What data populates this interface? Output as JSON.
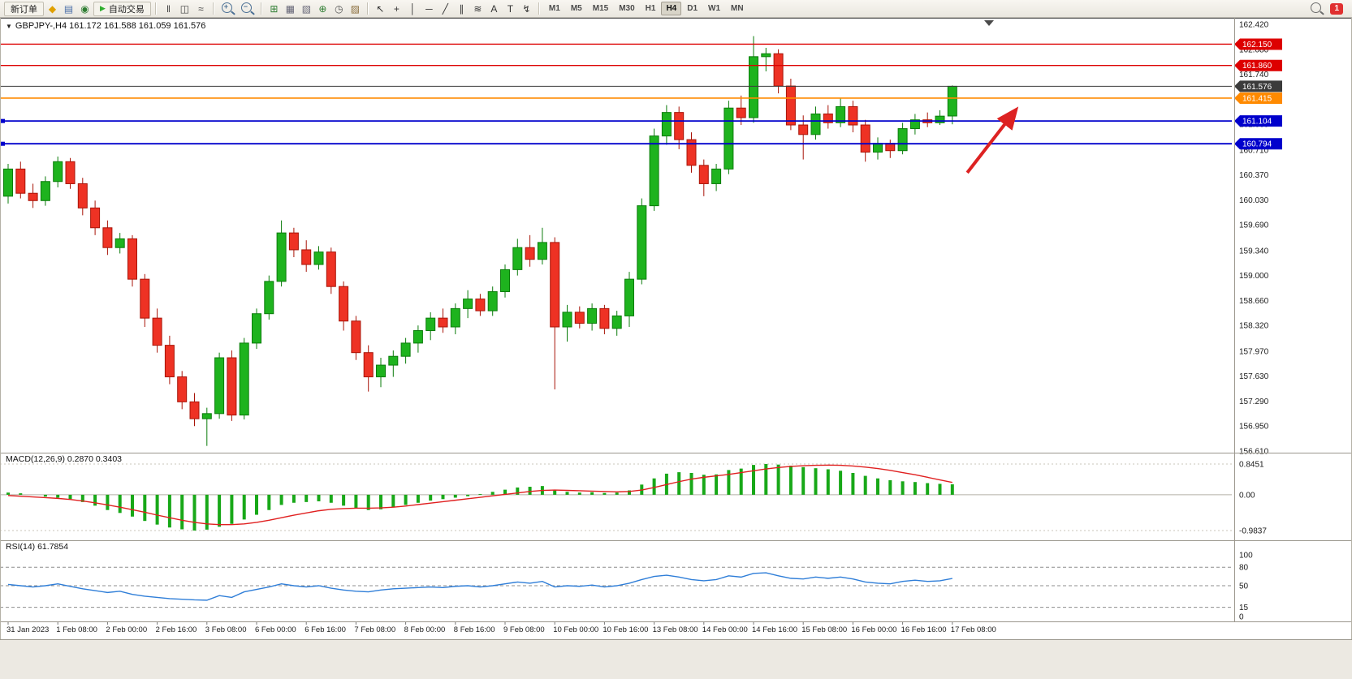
{
  "toolbar": {
    "new_order_label": "新订单",
    "autotrading_label": "自动交易",
    "timeframes": [
      "M1",
      "M5",
      "M15",
      "M30",
      "H1",
      "H4",
      "D1",
      "W1",
      "MN"
    ],
    "active_timeframe": "H4",
    "notification_count": "1",
    "icons": {
      "one_click": {
        "glyph": "▼",
        "color": "#222222"
      },
      "metaeditor": {
        "glyph": "◆",
        "color": "#e0a000"
      },
      "print": {
        "glyph": "▤",
        "color": "#4a6ea8"
      },
      "community": {
        "glyph": "◉",
        "color": "#2e7d32"
      },
      "autotrading_play": {
        "glyph": "▶",
        "color": "#2eae2e"
      },
      "bar_chart": {
        "glyph": "‖",
        "color": "#444444"
      },
      "candlestick": {
        "glyph": "◫",
        "color": "#444444"
      },
      "line_chart": {
        "glyph": "≈",
        "color": "#444444"
      },
      "tile_windows": {
        "glyph": "⊞",
        "color": "#2e7d32"
      },
      "window_list": {
        "glyph": "▦",
        "color": "#666677"
      },
      "cascade": {
        "glyph": "▧",
        "color": "#666677"
      },
      "indicators": {
        "glyph": "⊕",
        "color": "#2e7d32"
      },
      "periods": {
        "glyph": "◷",
        "color": "#555555"
      },
      "templates": {
        "glyph": "▨",
        "color": "#8a6d3b"
      },
      "cursor": {
        "glyph": "↖",
        "color": "#333333"
      },
      "crosshair": {
        "glyph": "+",
        "color": "#333333"
      },
      "vline": {
        "glyph": "│",
        "color": "#333333"
      },
      "hline": {
        "glyph": "─",
        "color": "#333333"
      },
      "trendline": {
        "glyph": "╱",
        "color": "#333333"
      },
      "channel": {
        "glyph": "∥",
        "color": "#333333"
      },
      "fibonacci": {
        "glyph": "≋",
        "color": "#333333"
      },
      "text": {
        "glyph": "A",
        "color": "#333333"
      },
      "label": {
        "glyph": "T",
        "color": "#333333"
      },
      "arrows": {
        "glyph": "↯",
        "color": "#333333"
      }
    }
  },
  "chart": {
    "title": "GBPJPY-,H4 161.172 161.588 161.059 161.576",
    "symbol": "GBPJPY-",
    "period": "H4",
    "ohlc": {
      "open": "161.172",
      "high": "161.588",
      "low": "161.059",
      "close": "161.576"
    }
  },
  "chart_data": {
    "type": "candlestick",
    "symbol": "GBPJPY-",
    "period": "H4",
    "y_range": [
      156.61,
      162.42
    ],
    "y_ticks": [
      "162.420",
      "162.080",
      "161.740",
      "161.400",
      "161.060",
      "160.710",
      "160.370",
      "160.030",
      "159.690",
      "159.340",
      "159.000",
      "158.660",
      "158.320",
      "157.970",
      "157.630",
      "157.290",
      "156.950",
      "156.610"
    ],
    "x_labels": [
      "31 Jan 2023",
      "1 Feb 08:00",
      "2 Feb 00:00",
      "2 Feb 16:00",
      "3 Feb 08:00",
      "6 Feb 00:00",
      "6 Feb 16:00",
      "7 Feb 08:00",
      "8 Feb 00:00",
      "8 Feb 16:00",
      "9 Feb 08:00",
      "10 Feb 00:00",
      "10 Feb 16:00",
      "13 Feb 08:00",
      "14 Feb 00:00",
      "14 Feb 16:00",
      "15 Feb 08:00",
      "16 Feb 00:00",
      "16 Feb 16:00",
      "17 Feb 08:00"
    ],
    "x_label_step": 4,
    "colors": {
      "up": "#1eb31e",
      "up_border": "#0b7c0b",
      "down": "#ee3224",
      "down_border": "#a81408"
    },
    "candles": [
      [
        160.08,
        160.52,
        159.98,
        160.45
      ],
      [
        160.45,
        160.55,
        160.05,
        160.12
      ],
      [
        160.12,
        160.25,
        159.92,
        160.02
      ],
      [
        160.02,
        160.35,
        159.95,
        160.28
      ],
      [
        160.28,
        160.62,
        160.2,
        160.55
      ],
      [
        160.55,
        160.6,
        160.18,
        160.25
      ],
      [
        160.25,
        160.33,
        159.82,
        159.92
      ],
      [
        159.92,
        160.02,
        159.55,
        159.65
      ],
      [
        159.65,
        159.75,
        159.28,
        159.38
      ],
      [
        159.38,
        159.58,
        159.3,
        159.5
      ],
      [
        159.5,
        159.55,
        158.85,
        158.95
      ],
      [
        158.95,
        159.02,
        158.3,
        158.42
      ],
      [
        158.42,
        158.55,
        157.95,
        158.05
      ],
      [
        158.05,
        158.18,
        157.52,
        157.62
      ],
      [
        157.62,
        157.7,
        157.18,
        157.28
      ],
      [
        157.28,
        157.4,
        156.95,
        157.05
      ],
      [
        157.05,
        157.2,
        156.68,
        157.12
      ],
      [
        157.12,
        157.95,
        157.05,
        157.88
      ],
      [
        157.88,
        157.98,
        157.02,
        157.1
      ],
      [
        157.1,
        158.15,
        157.04,
        158.08
      ],
      [
        158.08,
        158.55,
        158.0,
        158.48
      ],
      [
        158.48,
        159.0,
        158.4,
        158.92
      ],
      [
        158.92,
        159.75,
        158.85,
        159.58
      ],
      [
        159.58,
        159.65,
        159.25,
        159.35
      ],
      [
        159.35,
        159.48,
        159.05,
        159.15
      ],
      [
        159.15,
        159.4,
        159.08,
        159.32
      ],
      [
        159.32,
        159.38,
        158.75,
        158.85
      ],
      [
        158.85,
        158.92,
        158.25,
        158.38
      ],
      [
        158.38,
        158.45,
        157.85,
        157.95
      ],
      [
        157.95,
        158.05,
        157.42,
        157.62
      ],
      [
        157.62,
        157.88,
        157.48,
        157.78
      ],
      [
        157.78,
        157.98,
        157.62,
        157.9
      ],
      [
        157.9,
        158.15,
        157.8,
        158.08
      ],
      [
        158.08,
        158.32,
        157.95,
        158.25
      ],
      [
        158.25,
        158.5,
        158.12,
        158.42
      ],
      [
        158.42,
        158.55,
        158.22,
        158.3
      ],
      [
        158.3,
        158.62,
        158.2,
        158.55
      ],
      [
        158.55,
        158.8,
        158.42,
        158.68
      ],
      [
        158.68,
        158.75,
        158.45,
        158.52
      ],
      [
        158.52,
        158.85,
        158.45,
        158.78
      ],
      [
        158.78,
        159.15,
        158.7,
        159.08
      ],
      [
        159.08,
        159.5,
        159.0,
        159.38
      ],
      [
        159.38,
        159.55,
        159.12,
        159.22
      ],
      [
        159.22,
        159.65,
        159.15,
        159.45
      ],
      [
        159.45,
        159.52,
        157.45,
        158.3
      ],
      [
        158.3,
        158.6,
        158.1,
        158.5
      ],
      [
        158.5,
        158.58,
        158.28,
        158.35
      ],
      [
        158.35,
        158.62,
        158.25,
        158.55
      ],
      [
        158.55,
        158.6,
        158.2,
        158.28
      ],
      [
        158.28,
        158.52,
        158.18,
        158.45
      ],
      [
        158.45,
        159.05,
        158.3,
        158.95
      ],
      [
        158.95,
        160.05,
        158.88,
        159.95
      ],
      [
        159.95,
        161.0,
        159.88,
        160.9
      ],
      [
        160.9,
        161.32,
        160.78,
        161.22
      ],
      [
        161.22,
        161.3,
        160.72,
        160.85
      ],
      [
        160.85,
        160.95,
        160.4,
        160.5
      ],
      [
        160.5,
        160.58,
        160.08,
        160.25
      ],
      [
        160.25,
        160.52,
        160.15,
        160.45
      ],
      [
        160.45,
        161.38,
        160.38,
        161.28
      ],
      [
        161.28,
        161.45,
        161.05,
        161.15
      ],
      [
        161.15,
        162.26,
        161.08,
        161.98
      ],
      [
        161.98,
        162.1,
        161.78,
        162.02
      ],
      [
        162.02,
        162.08,
        161.48,
        161.58
      ],
      [
        161.58,
        161.68,
        160.98,
        161.05
      ],
      [
        161.05,
        161.18,
        160.58,
        160.92
      ],
      [
        160.92,
        161.3,
        160.85,
        161.2
      ],
      [
        161.2,
        161.32,
        161.0,
        161.08
      ],
      [
        161.08,
        161.42,
        161.02,
        161.3
      ],
      [
        161.3,
        161.38,
        160.95,
        161.05
      ],
      [
        161.05,
        161.12,
        160.55,
        160.68
      ],
      [
        160.68,
        160.88,
        160.58,
        160.8
      ],
      [
        160.8,
        160.85,
        160.6,
        160.7
      ],
      [
        160.7,
        161.08,
        160.65,
        161.0
      ],
      [
        161.0,
        161.2,
        160.92,
        161.12
      ],
      [
        161.12,
        161.22,
        161.02,
        161.08
      ],
      [
        161.08,
        161.25,
        161.05,
        161.17
      ],
      [
        161.172,
        161.588,
        161.059,
        161.576
      ]
    ],
    "levels": [
      {
        "name": "resistance-line-162150",
        "price": 162.15,
        "label": "162.150",
        "color": "#dd0000",
        "width": 1.3
      },
      {
        "name": "resistance-line-161860",
        "price": 161.86,
        "label": "161.860",
        "color": "#dd0000",
        "width": 1.3
      },
      {
        "name": "bid-price-line",
        "price": 161.576,
        "label": "161.576",
        "color": "#3b3b3b",
        "width": 1
      },
      {
        "name": "support-line-161415",
        "price": 161.415,
        "label": "161.415",
        "color": "#ff8a00",
        "width": 1.6
      },
      {
        "name": "support-line-161104",
        "price": 161.104,
        "label": "161.104",
        "color": "#0000cc",
        "width": 1.8,
        "handles": true
      },
      {
        "name": "support-line-160794",
        "price": 160.794,
        "label": "160.794",
        "color": "#0000cc",
        "width": 1.8,
        "handles": true
      }
    ],
    "annotations": [
      {
        "type": "arrow",
        "i1": 77.2,
        "p1": 160.4,
        "i2": 81.0,
        "p2": 161.23,
        "color": "#dd2222"
      }
    ],
    "indicators": {
      "macd": {
        "title": "MACD(12,26,9) 0.2870 0.3403",
        "range": [
          -0.9837,
          0.8451
        ],
        "axis": [
          {
            "label": "0.8451",
            "value": 0.8451
          },
          {
            "label": "0.00",
            "value": 0
          },
          {
            "label": "-0.9837",
            "value": -0.9837
          }
        ],
        "histogram_color": "#18a818",
        "signal_color": "#e02020",
        "histogram": [
          0.06,
          0.04,
          0.0,
          -0.05,
          -0.08,
          -0.12,
          -0.2,
          -0.3,
          -0.42,
          -0.5,
          -0.6,
          -0.72,
          -0.82,
          -0.9,
          -0.95,
          -0.9837,
          -0.96,
          -0.88,
          -0.8,
          -0.68,
          -0.55,
          -0.42,
          -0.28,
          -0.22,
          -0.2,
          -0.18,
          -0.22,
          -0.3,
          -0.38,
          -0.42,
          -0.4,
          -0.35,
          -0.28,
          -0.22,
          -0.16,
          -0.12,
          -0.08,
          -0.04,
          0.02,
          0.08,
          0.14,
          0.2,
          0.22,
          0.24,
          0.12,
          0.08,
          0.06,
          0.07,
          0.05,
          0.06,
          0.12,
          0.28,
          0.45,
          0.58,
          0.62,
          0.6,
          0.55,
          0.56,
          0.68,
          0.72,
          0.82,
          0.8451,
          0.83,
          0.8,
          0.76,
          0.73,
          0.7,
          0.66,
          0.6,
          0.52,
          0.45,
          0.4,
          0.37,
          0.35,
          0.32,
          0.3,
          0.287
        ],
        "signal": [
          -0.02,
          -0.04,
          -0.06,
          -0.08,
          -0.1,
          -0.13,
          -0.17,
          -0.22,
          -0.28,
          -0.34,
          -0.41,
          -0.48,
          -0.56,
          -0.63,
          -0.7,
          -0.76,
          -0.8,
          -0.82,
          -0.82,
          -0.8,
          -0.76,
          -0.7,
          -0.63,
          -0.56,
          -0.5,
          -0.44,
          -0.4,
          -0.38,
          -0.37,
          -0.37,
          -0.36,
          -0.34,
          -0.31,
          -0.27,
          -0.23,
          -0.19,
          -0.15,
          -0.11,
          -0.07,
          -0.03,
          0.01,
          0.05,
          0.09,
          0.12,
          0.13,
          0.12,
          0.11,
          0.1,
          0.09,
          0.08,
          0.09,
          0.13,
          0.2,
          0.28,
          0.36,
          0.43,
          0.48,
          0.52,
          0.56,
          0.61,
          0.66,
          0.71,
          0.75,
          0.78,
          0.8,
          0.81,
          0.815,
          0.81,
          0.79,
          0.76,
          0.72,
          0.67,
          0.61,
          0.55,
          0.48,
          0.41,
          0.3403
        ]
      },
      "rsi": {
        "title": "RSI(14) 61.7854",
        "range": [
          0,
          100
        ],
        "levels": [
          80,
          50,
          15
        ],
        "axis": [
          {
            "label": "100",
            "value": 100
          },
          {
            "label": "80",
            "value": 80
          },
          {
            "label": "50",
            "value": 50
          },
          {
            "label": "15",
            "value": 15
          },
          {
            "label": "0",
            "value": 0
          }
        ],
        "color": "#2f7ed8",
        "values": [
          52,
          50,
          48,
          50,
          53,
          49,
          45,
          42,
          39,
          41,
          36,
          33,
          31,
          29,
          28,
          27,
          26.5,
          34,
          31,
          40,
          44,
          48,
          53,
          50,
          48,
          50,
          46,
          43,
          41,
          40,
          43,
          45,
          46,
          47,
          48,
          47,
          49,
          50,
          48,
          50,
          53,
          56,
          54,
          57,
          48,
          50,
          49,
          51,
          48,
          50,
          54,
          60,
          65,
          67,
          64,
          60,
          58,
          60,
          66,
          64,
          70,
          71,
          66,
          62,
          61,
          64,
          62,
          64,
          61,
          56,
          54,
          53,
          57,
          59,
          57,
          58,
          61.79
        ]
      }
    }
  }
}
